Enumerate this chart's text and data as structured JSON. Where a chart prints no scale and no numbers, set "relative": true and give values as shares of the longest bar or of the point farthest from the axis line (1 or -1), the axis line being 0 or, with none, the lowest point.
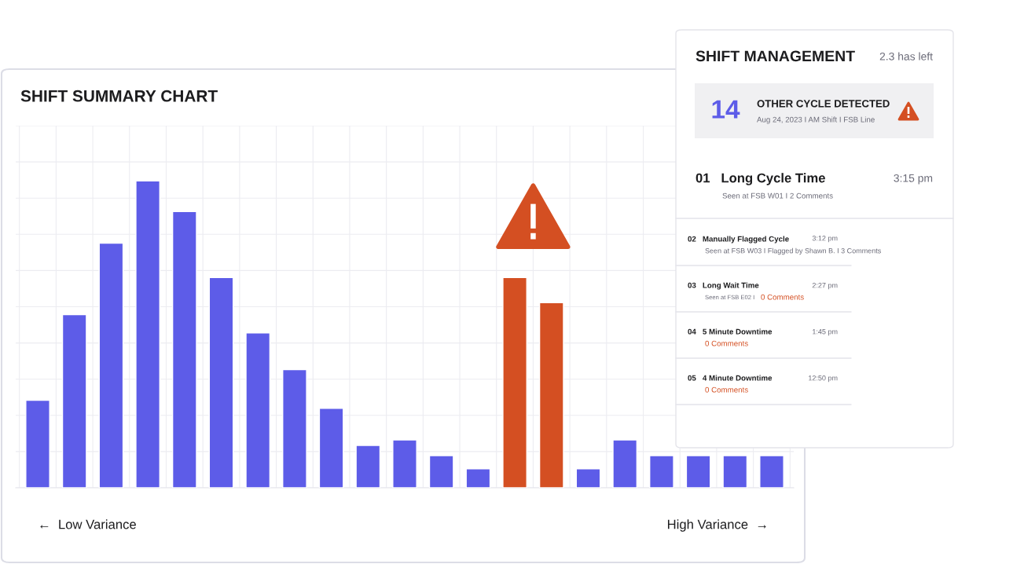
{
  "chart_data": [
    {
      "type": "bar",
      "title": "SHIFT SUMMARY CHART",
      "relative": true,
      "grid": true,
      "categories": [
        null,
        null,
        null,
        null,
        null,
        null,
        null,
        null,
        null,
        null,
        null,
        null,
        null,
        null,
        null,
        null,
        null,
        null,
        null,
        null,
        null
      ],
      "values": [
        0.285,
        0.564,
        0.797,
        1,
        0.9,
        0.685,
        0.505,
        0.385,
        0.259,
        0.138,
        0.156,
        0.105,
        0.062,
        0.685,
        0.603,
        0.062,
        0.156,
        0.105,
        0.105,
        0.105,
        0.105
      ],
      "colors": [
        "#5d5ce8",
        "#5d5ce8",
        "#5d5ce8",
        "#5d5ce8",
        "#5d5ce8",
        "#5d5ce8",
        "#5d5ce8",
        "#5d5ce8",
        "#5d5ce8",
        "#5d5ce8",
        "#5d5ce8",
        "#5d5ce8",
        "#5d5ce8",
        "#d44f22",
        "#d44f22",
        "#5d5ce8",
        "#5d5ce8",
        "#5d5ce8",
        "#5d5ce8",
        "#5d5ce8",
        "#5d5ce8"
      ],
      "annotations": [
        "←  Low Variance",
        "High Variance  →"
      ]
    },
    {
      "type": "other",
      "title": "SHIFT MANAGEMENT",
      "annotations": [
        "2.3 has left",
        "14",
        "OTHER CYCLE DETECTED",
        "Aug 24, 2023 I AM Shift I FSB Line",
        "01   Long Cycle Time",
        "3:15 pm",
        "Seen at FSB W01 I 2 Comments",
        "02   Manually Flagged Cycle",
        "3:12 pm",
        "Seen at FSB W03 I Flagged by Shawn B. I 3 Comments",
        "03   Long Wait Time",
        "2:27 pm",
        "Seen at FSB E02 I",
        "0 Comments",
        "04   5 Minute Downtime",
        "1:45 pm",
        "0 Comments",
        "05   4 Minute Downtime",
        "12:50 pm",
        "0 Comments"
      ]
    }
  ]
}
